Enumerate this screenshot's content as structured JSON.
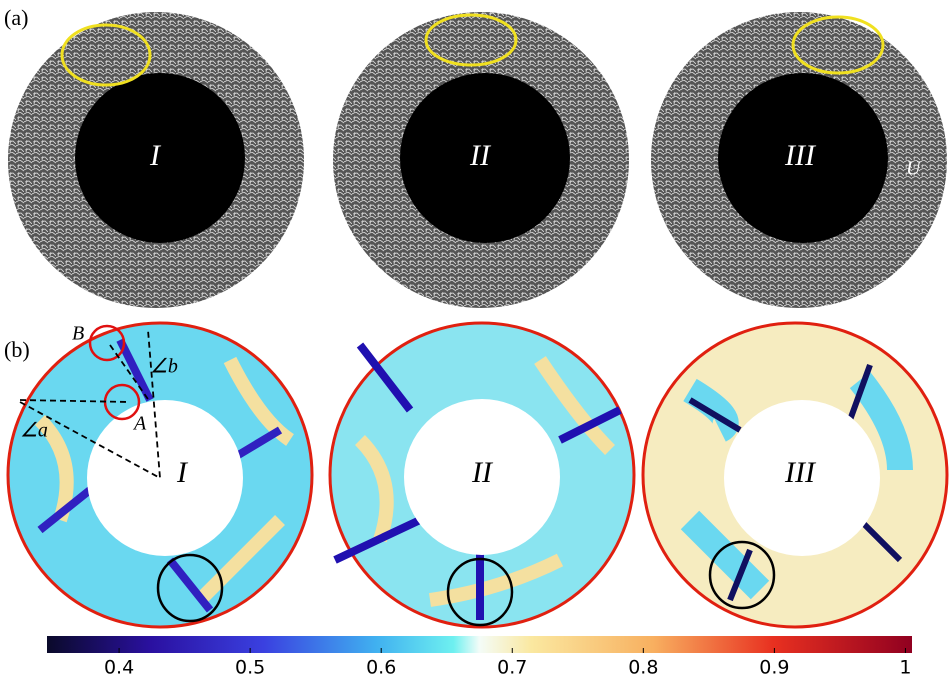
{
  "panels": [
    {
      "label": "(a)",
      "cases": [
        "I",
        "II",
        "III"
      ],
      "annotation": "U"
    },
    {
      "label": "(b)",
      "cases": [
        "I",
        "II",
        "III"
      ],
      "annotations": [
        "B",
        "A",
        "∠a",
        "∠b"
      ]
    }
  ],
  "colorbar": {
    "lim": [
      0.345,
      1.005
    ],
    "ticks": [
      0.4,
      0.5,
      0.6,
      0.7,
      0.8,
      0.9,
      1
    ]
  }
}
